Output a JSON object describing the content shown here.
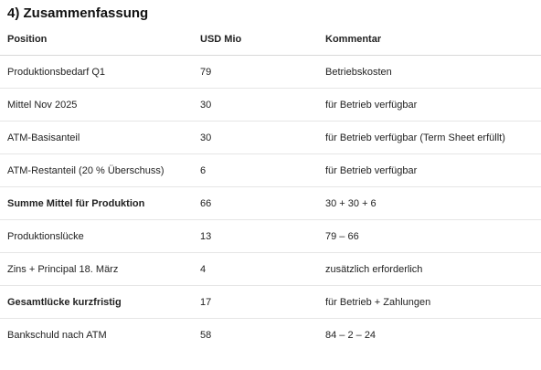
{
  "heading": "4) Zusammenfassung",
  "table": {
    "headers": [
      "Position",
      "USD Mio",
      "Kommentar"
    ],
    "rows": [
      {
        "position": "Produktionsbedarf Q1",
        "usd": "79",
        "kommentar": "Betriebskosten",
        "bold": false
      },
      {
        "position": "Mittel Nov 2025",
        "usd": "30",
        "kommentar": "für Betrieb verfügbar",
        "bold": false
      },
      {
        "position": "ATM-Basisanteil",
        "usd": "30",
        "kommentar": "für Betrieb verfügbar (Term Sheet erfüllt)",
        "bold": false
      },
      {
        "position": "ATM-Restanteil (20 % Überschuss)",
        "usd": "6",
        "kommentar": "für Betrieb verfügbar",
        "bold": false
      },
      {
        "position": "Summe Mittel für Produktion",
        "usd": "66",
        "kommentar": "30 + 30 + 6",
        "bold": true
      },
      {
        "position": "Produktionslücke",
        "usd": "13",
        "kommentar": "79 – 66",
        "bold": false
      },
      {
        "position": "Zins + Principal 18. März",
        "usd": "4",
        "kommentar": "zusätzlich erforderlich",
        "bold": false
      },
      {
        "position": "Gesamtlücke kurzfristig",
        "usd": "17",
        "kommentar": "für Betrieb + Zahlungen",
        "bold": true
      },
      {
        "position": "Bankschuld nach ATM",
        "usd": "58",
        "kommentar": "84 – 2 – 24",
        "bold": false
      }
    ]
  }
}
